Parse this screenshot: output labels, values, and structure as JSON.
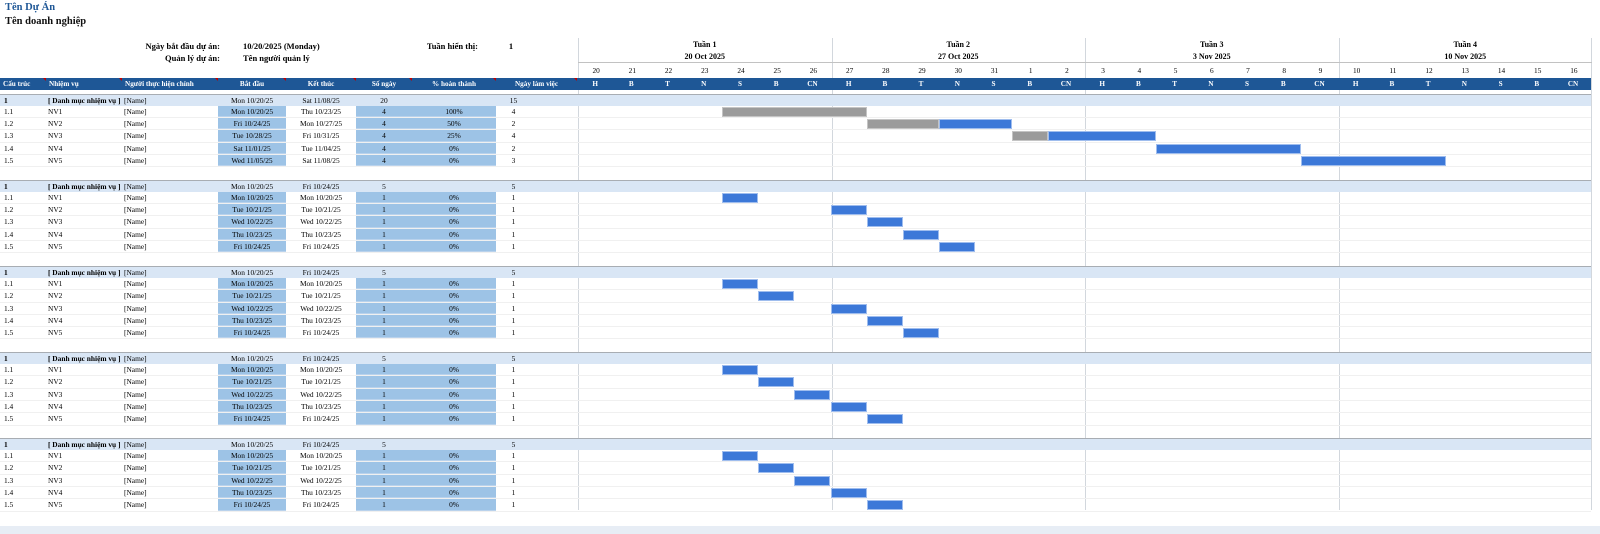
{
  "colors": {
    "header_blue": "#1E5796",
    "section_fill": "#D9E6F5",
    "cell_fill": "#9DC3E6",
    "bar_blue": "#3C78D8",
    "bar_gray": "#9B9B9B",
    "title_blue": "#1F5796",
    "comment_marker_red": "#C00000"
  },
  "header": {
    "project_title": "Tên Dự Án",
    "company_name": "Tên doanh nghiệp",
    "info": {
      "start_label": "Ngày bắt đầu dự án:",
      "start_value": "10/20/2025 (Monday)",
      "manager_label": "Quản lý dự án:",
      "manager_value": "Tên người quản lý",
      "week_display_label": "Tuần hiển thị:",
      "week_display_value": "1"
    }
  },
  "table_headers": [
    "Cấu trúc",
    "Nhiệm vụ",
    "Người thực hiện chính",
    "Bắt đầu",
    "Kết thúc",
    "Số ngày",
    "% hoàn thành",
    "Ngày làm việc"
  ],
  "timeline": {
    "weeks": [
      {
        "name": "Tuần 1",
        "date": "20 Oct 2025",
        "day_numbers": [
          "20",
          "21",
          "22",
          "23",
          "24",
          "25",
          "26"
        ]
      },
      {
        "name": "Tuần 2",
        "date": "27 Oct 2025",
        "day_numbers": [
          "27",
          "28",
          "29",
          "30",
          "31",
          "1",
          "2"
        ]
      },
      {
        "name": "Tuần 3",
        "date": "3 Nov 2025",
        "day_numbers": [
          "3",
          "4",
          "5",
          "6",
          "7",
          "8",
          "9"
        ]
      },
      {
        "name": "Tuần 4",
        "date": "10 Nov 2025",
        "day_numbers": [
          "10",
          "11",
          "12",
          "13",
          "14",
          "15",
          "16"
        ]
      }
    ],
    "day_letters": [
      "H",
      "B",
      "T",
      "N",
      "S",
      "B",
      "CN"
    ]
  },
  "sections": [
    {
      "summary": {
        "wbs": "1",
        "task": "[ Danh mục nhiệm vụ ]",
        "owner": "[Name]",
        "start": "Mon 10/20/25",
        "end": "Sat 11/08/25",
        "days": "20",
        "percent": "",
        "workdays": "15"
      },
      "rows": [
        {
          "wbs": "1.1",
          "task": "NV1",
          "owner": "[Name]",
          "start": "Mon 10/20/25",
          "end": "Thu 10/23/25",
          "days": "4",
          "percent": "100%",
          "workdays": "4",
          "bars": [
            {
              "col": 5,
              "span": 4,
              "state": "complete"
            }
          ]
        },
        {
          "wbs": "1.2",
          "task": "NV2",
          "owner": "[Name]",
          "start": "Fri 10/24/25",
          "end": "Mon 10/27/25",
          "days": "4",
          "percent": "50%",
          "workdays": "2",
          "bars": [
            {
              "col": 9,
              "span": 2,
              "state": "complete"
            },
            {
              "col": 11,
              "span": 2,
              "state": "remaining"
            }
          ]
        },
        {
          "wbs": "1.3",
          "task": "NV3",
          "owner": "[Name]",
          "start": "Tue 10/28/25",
          "end": "Fri 10/31/25",
          "days": "4",
          "percent": "25%",
          "workdays": "4",
          "bars": [
            {
              "col": 13,
              "span": 1,
              "state": "complete"
            },
            {
              "col": 14,
              "span": 3,
              "state": "remaining"
            }
          ]
        },
        {
          "wbs": "1.4",
          "task": "NV4",
          "owner": "[Name]",
          "start": "Sat 11/01/25",
          "end": "Tue 11/04/25",
          "days": "4",
          "percent": "0%",
          "workdays": "2",
          "bars": [
            {
              "col": 17,
              "span": 4,
              "state": "remaining"
            }
          ]
        },
        {
          "wbs": "1.5",
          "task": "NV5",
          "owner": "[Name]",
          "start": "Wed 11/05/25",
          "end": "Sat 11/08/25",
          "days": "4",
          "percent": "0%",
          "workdays": "3",
          "bars": [
            {
              "col": 21,
              "span": 4,
              "state": "remaining"
            }
          ]
        }
      ]
    },
    {
      "summary": {
        "wbs": "1",
        "task": "[ Danh mục nhiệm vụ ]",
        "owner": "[Name]",
        "start": "Mon 10/20/25",
        "end": "Fri 10/24/25",
        "days": "5",
        "percent": "",
        "workdays": "5"
      },
      "rows": [
        {
          "wbs": "1.1",
          "task": "NV1",
          "owner": "[Name]",
          "start": "Mon 10/20/25",
          "end": "Mon 10/20/25",
          "days": "1",
          "percent": "0%",
          "workdays": "1",
          "bars": [
            {
              "col": 5,
              "span": 1,
              "state": "remaining"
            }
          ]
        },
        {
          "wbs": "1.2",
          "task": "NV2",
          "owner": "[Name]",
          "start": "Tue 10/21/25",
          "end": "Tue 10/21/25",
          "days": "1",
          "percent": "0%",
          "workdays": "1",
          "bars": [
            {
              "col": 8,
              "span": 1,
              "state": "remaining"
            }
          ]
        },
        {
          "wbs": "1.3",
          "task": "NV3",
          "owner": "[Name]",
          "start": "Wed 10/22/25",
          "end": "Wed 10/22/25",
          "days": "1",
          "percent": "0%",
          "workdays": "1",
          "bars": [
            {
              "col": 9,
              "span": 1,
              "state": "remaining"
            }
          ]
        },
        {
          "wbs": "1.4",
          "task": "NV4",
          "owner": "[Name]",
          "start": "Thu 10/23/25",
          "end": "Thu 10/23/25",
          "days": "1",
          "percent": "0%",
          "workdays": "1",
          "bars": [
            {
              "col": 10,
              "span": 1,
              "state": "remaining"
            }
          ]
        },
        {
          "wbs": "1.5",
          "task": "NV5",
          "owner": "[Name]",
          "start": "Fri 10/24/25",
          "end": "Fri 10/24/25",
          "days": "1",
          "percent": "0%",
          "workdays": "1",
          "bars": [
            {
              "col": 11,
              "span": 1,
              "state": "remaining"
            }
          ]
        }
      ]
    },
    {
      "summary": {
        "wbs": "1",
        "task": "[ Danh mục nhiệm vụ ]",
        "owner": "[Name]",
        "start": "Mon 10/20/25",
        "end": "Fri 10/24/25",
        "days": "5",
        "percent": "",
        "workdays": "5"
      },
      "rows": [
        {
          "wbs": "1.1",
          "task": "NV1",
          "owner": "[Name]",
          "start": "Mon 10/20/25",
          "end": "Mon 10/20/25",
          "days": "1",
          "percent": "0%",
          "workdays": "1",
          "bars": [
            {
              "col": 5,
              "span": 1,
              "state": "remaining"
            }
          ]
        },
        {
          "wbs": "1.2",
          "task": "NV2",
          "owner": "[Name]",
          "start": "Tue 10/21/25",
          "end": "Tue 10/21/25",
          "days": "1",
          "percent": "0%",
          "workdays": "1",
          "bars": [
            {
              "col": 6,
              "span": 1,
              "state": "remaining"
            }
          ]
        },
        {
          "wbs": "1.3",
          "task": "NV3",
          "owner": "[Name]",
          "start": "Wed 10/22/25",
          "end": "Wed 10/22/25",
          "days": "1",
          "percent": "0%",
          "workdays": "1",
          "bars": [
            {
              "col": 8,
              "span": 1,
              "state": "remaining"
            }
          ]
        },
        {
          "wbs": "1.4",
          "task": "NV4",
          "owner": "[Name]",
          "start": "Thu 10/23/25",
          "end": "Thu 10/23/25",
          "days": "1",
          "percent": "0%",
          "workdays": "1",
          "bars": [
            {
              "col": 9,
              "span": 1,
              "state": "remaining"
            }
          ]
        },
        {
          "wbs": "1.5",
          "task": "NV5",
          "owner": "[Name]",
          "start": "Fri 10/24/25",
          "end": "Fri 10/24/25",
          "days": "1",
          "percent": "0%",
          "workdays": "1",
          "bars": [
            {
              "col": 10,
              "span": 1,
              "state": "remaining"
            }
          ]
        }
      ]
    },
    {
      "summary": {
        "wbs": "1",
        "task": "[ Danh mục nhiệm vụ ]",
        "owner": "[Name]",
        "start": "Mon 10/20/25",
        "end": "Fri 10/24/25",
        "days": "5",
        "percent": "",
        "workdays": "5"
      },
      "rows": [
        {
          "wbs": "1.1",
          "task": "NV1",
          "owner": "[Name]",
          "start": "Mon 10/20/25",
          "end": "Mon 10/20/25",
          "days": "1",
          "percent": "0%",
          "workdays": "1",
          "bars": [
            {
              "col": 5,
              "span": 1,
              "state": "remaining"
            }
          ]
        },
        {
          "wbs": "1.2",
          "task": "NV2",
          "owner": "[Name]",
          "start": "Tue 10/21/25",
          "end": "Tue 10/21/25",
          "days": "1",
          "percent": "0%",
          "workdays": "1",
          "bars": [
            {
              "col": 6,
              "span": 1,
              "state": "remaining"
            }
          ]
        },
        {
          "wbs": "1.3",
          "task": "NV3",
          "owner": "[Name]",
          "start": "Wed 10/22/25",
          "end": "Wed 10/22/25",
          "days": "1",
          "percent": "0%",
          "workdays": "1",
          "bars": [
            {
              "col": 7,
              "span": 1,
              "state": "remaining"
            }
          ]
        },
        {
          "wbs": "1.4",
          "task": "NV4",
          "owner": "[Name]",
          "start": "Thu 10/23/25",
          "end": "Thu 10/23/25",
          "days": "1",
          "percent": "0%",
          "workdays": "1",
          "bars": [
            {
              "col": 8,
              "span": 1,
              "state": "remaining"
            }
          ]
        },
        {
          "wbs": "1.5",
          "task": "NV5",
          "owner": "[Name]",
          "start": "Fri 10/24/25",
          "end": "Fri 10/24/25",
          "days": "1",
          "percent": "0%",
          "workdays": "1",
          "bars": [
            {
              "col": 9,
              "span": 1,
              "state": "remaining"
            }
          ]
        }
      ]
    },
    {
      "summary": {
        "wbs": "1",
        "task": "[ Danh mục nhiệm vụ ]",
        "owner": "[Name]",
        "start": "Mon 10/20/25",
        "end": "Fri 10/24/25",
        "days": "5",
        "percent": "",
        "workdays": "5"
      },
      "rows": [
        {
          "wbs": "1.1",
          "task": "NV1",
          "owner": "[Name]",
          "start": "Mon 10/20/25",
          "end": "Mon 10/20/25",
          "days": "1",
          "percent": "0%",
          "workdays": "1",
          "bars": [
            {
              "col": 5,
              "span": 1,
              "state": "remaining"
            }
          ]
        },
        {
          "wbs": "1.2",
          "task": "NV2",
          "owner": "[Name]",
          "start": "Tue 10/21/25",
          "end": "Tue 10/21/25",
          "days": "1",
          "percent": "0%",
          "workdays": "1",
          "bars": [
            {
              "col": 6,
              "span": 1,
              "state": "remaining"
            }
          ]
        },
        {
          "wbs": "1.3",
          "task": "NV3",
          "owner": "[Name]",
          "start": "Wed 10/22/25",
          "end": "Wed 10/22/25",
          "days": "1",
          "percent": "0%",
          "workdays": "1",
          "bars": [
            {
              "col": 7,
              "span": 1,
              "state": "remaining"
            }
          ]
        },
        {
          "wbs": "1.4",
          "task": "NV4",
          "owner": "[Name]",
          "start": "Thu 10/23/25",
          "end": "Thu 10/23/25",
          "days": "1",
          "percent": "0%",
          "workdays": "1",
          "bars": [
            {
              "col": 8,
              "span": 1,
              "state": "remaining"
            }
          ]
        },
        {
          "wbs": "1.5",
          "task": "NV5",
          "owner": "[Name]",
          "start": "Fri 10/24/25",
          "end": "Fri 10/24/25",
          "days": "1",
          "percent": "0%",
          "workdays": "1",
          "bars": [
            {
              "col": 9,
              "span": 1,
              "state": "remaining"
            }
          ]
        }
      ]
    }
  ]
}
